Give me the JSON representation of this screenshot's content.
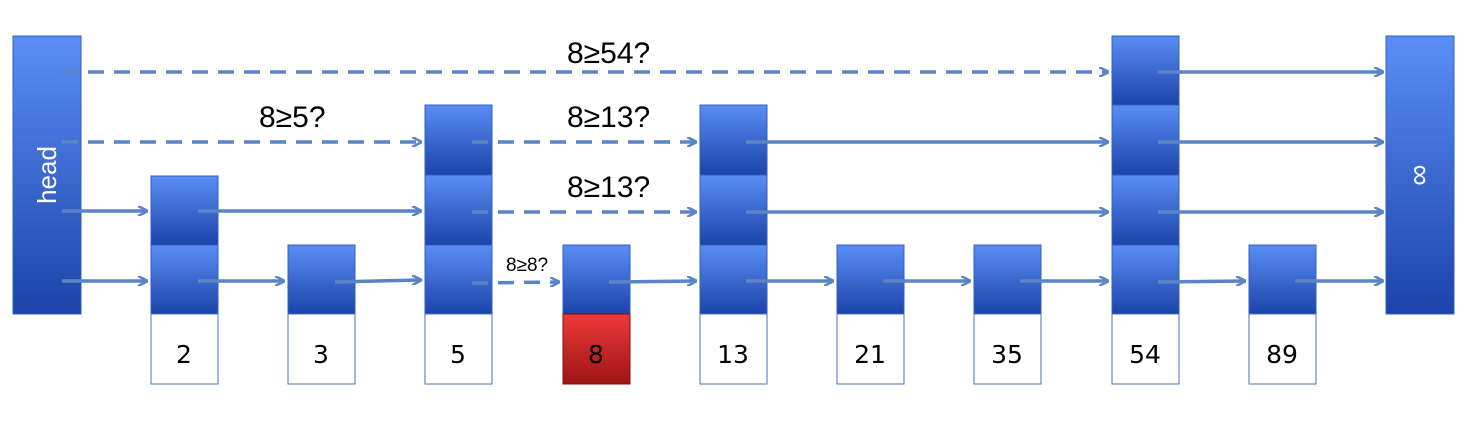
{
  "head_label": "head",
  "tail_label": "∞",
  "nodes": [
    {
      "value": "2",
      "levels": 2,
      "found": false
    },
    {
      "value": "3",
      "levels": 1,
      "found": false
    },
    {
      "value": "5",
      "levels": 3,
      "found": false
    },
    {
      "value": "8",
      "levels": 1,
      "found": true
    },
    {
      "value": "13",
      "levels": 3,
      "found": false
    },
    {
      "value": "21",
      "levels": 1,
      "found": false
    },
    {
      "value": "35",
      "levels": 1,
      "found": false
    },
    {
      "value": "54",
      "levels": 4,
      "found": false
    },
    {
      "value": "89",
      "levels": 1,
      "found": false
    }
  ],
  "comparisons": [
    {
      "text": "8≥54?",
      "size": "large"
    },
    {
      "text": "8≥5?",
      "size": "large"
    },
    {
      "text": "8≥13?",
      "size": "large"
    },
    {
      "text": "8≥13?",
      "size": "large"
    },
    {
      "text": "8≥8?",
      "size": "small"
    }
  ],
  "colors": {
    "node_top": "#5a8ef5",
    "node_bottom": "#1c44a8",
    "node_border": "#2f5fc4",
    "arrow": "#5b84c4",
    "label_border": "#4a72b8",
    "found_top": "#ee3a3a",
    "found_bottom": "#9e1414",
    "text": "#000000",
    "inner_text": "#ffffff"
  }
}
